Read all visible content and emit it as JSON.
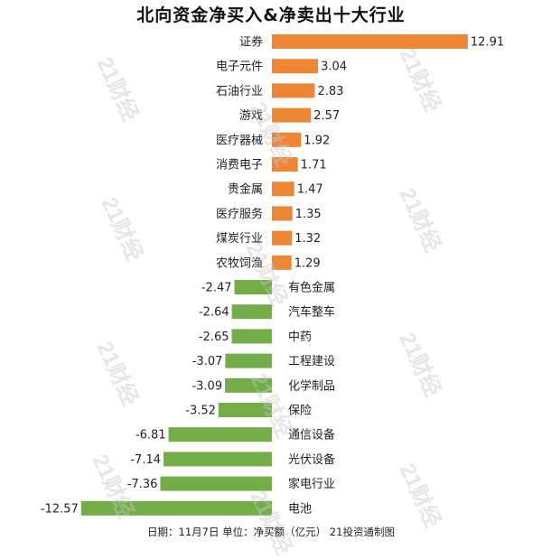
{
  "watermark_text": "21财经",
  "chart_data": {
    "type": "bar",
    "orientation": "horizontal",
    "title": "北向资金净买入&净卖出十大行业",
    "footer": "日期：11月7日 单位：净买额（亿元） 21投资通制图",
    "xlabel": "",
    "ylabel": "",
    "grid": false,
    "xlim": [
      -12.57,
      12.91
    ],
    "positive_color": "#ee8735",
    "negative_color": "#73ad48",
    "categories": [
      "证券",
      "电子元件",
      "石油行业",
      "游戏",
      "医疗器械",
      "消费电子",
      "贵金属",
      "医疗服务",
      "煤炭行业",
      "农牧饲渔",
      "有色金属",
      "汽车整车",
      "中药",
      "工程建设",
      "化学制品",
      "保险",
      "通信设备",
      "光伏设备",
      "家电行业",
      "电池"
    ],
    "value_labels": [
      "12.91",
      "3.04",
      "2.83",
      "2.57",
      "1.92",
      "1.71",
      "1.47",
      "1.35",
      "1.32",
      "1.29",
      "-2.47",
      "-2.64",
      "-2.65",
      "-3.07",
      "-3.09",
      "-3.52",
      "-6.81",
      "-7.14",
      "-7.36",
      "-12.57"
    ],
    "values": [
      12.91,
      3.04,
      2.83,
      2.57,
      1.92,
      1.71,
      1.47,
      1.35,
      1.32,
      1.29,
      -2.47,
      -2.64,
      -2.65,
      -3.07,
      -3.09,
      -3.52,
      -6.81,
      -7.14,
      -7.36,
      -12.57
    ]
  }
}
